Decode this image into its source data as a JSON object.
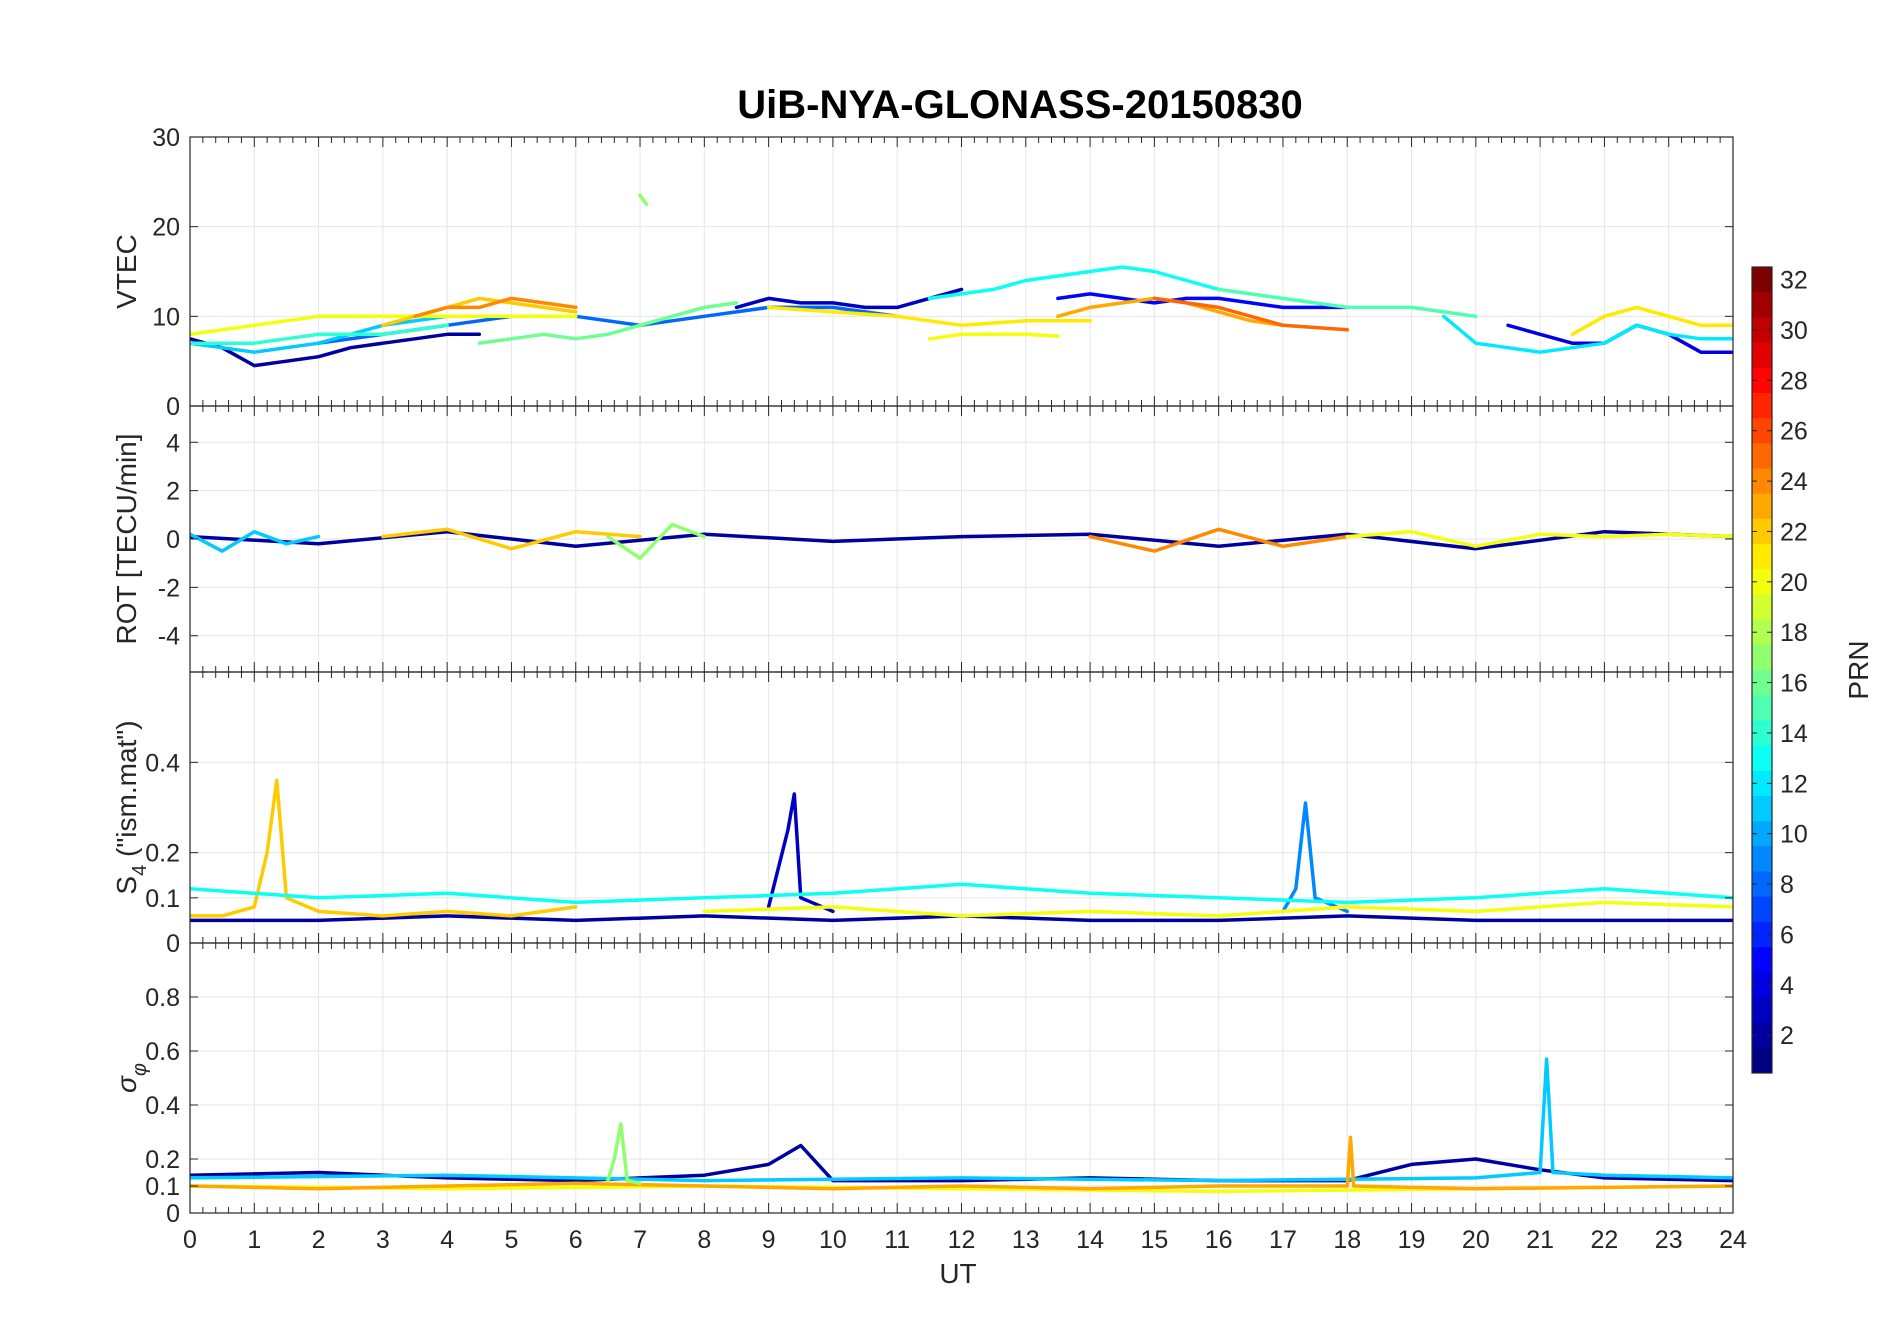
{
  "chart_data": {
    "type": "line",
    "title": "UiB-NYA-GLONASS-20150830",
    "xlabel": "UT",
    "xlim": [
      0,
      24
    ],
    "xticks": [
      0,
      1,
      2,
      3,
      4,
      5,
      6,
      7,
      8,
      9,
      10,
      11,
      12,
      13,
      14,
      15,
      16,
      17,
      18,
      19,
      20,
      21,
      22,
      23,
      24
    ],
    "colorbar": {
      "label": "PRN",
      "range": [
        1,
        32
      ],
      "ticks": [
        2,
        4,
        6,
        8,
        10,
        12,
        14,
        16,
        18,
        20,
        22,
        24,
        26,
        28,
        30,
        32
      ],
      "colormap": "jet",
      "location": "right"
    },
    "grid": true,
    "panels": [
      {
        "id": "vtec",
        "ylabel": "VTEC",
        "ylim": [
          0,
          30
        ],
        "yticks": [
          0,
          10,
          20,
          30
        ],
        "series": [
          {
            "prn": 2,
            "x": [
              0,
              0.5,
              1,
              1.5,
              2,
              2.5,
              3,
              3.5,
              4,
              4.5
            ],
            "y": [
              7.5,
              6.5,
              4.5,
              5,
              5.5,
              6.5,
              7,
              7.5,
              8,
              8
            ]
          },
          {
            "prn": 3,
            "x": [
              8.5,
              9,
              9.5,
              10,
              10.5,
              11,
              11.5,
              12
            ],
            "y": [
              11,
              12,
              11.5,
              11.5,
              11,
              11,
              12,
              13
            ]
          },
          {
            "prn": 5,
            "x": [
              13.5,
              14,
              14.5,
              15,
              15.5,
              16,
              16.5,
              17,
              17.5,
              18
            ],
            "y": [
              12,
              12.5,
              12,
              11.5,
              12,
              12,
              11.5,
              11,
              11,
              11
            ]
          },
          {
            "prn": 4,
            "x": [
              20.5,
              21,
              21.5,
              22,
              22.5,
              23,
              23.5,
              24
            ],
            "y": [
              9,
              8,
              7,
              7,
              9,
              8,
              6,
              6
            ]
          },
          {
            "prn": 8,
            "x": [
              2,
              3,
              4,
              5,
              6,
              7,
              8,
              9,
              10,
              11
            ],
            "y": [
              7,
              8,
              9,
              10,
              10,
              9,
              10,
              11,
              11,
              10
            ]
          },
          {
            "prn": 11,
            "x": [
              0,
              1,
              2,
              3,
              4
            ],
            "y": [
              7,
              6,
              7,
              9,
              10
            ]
          },
          {
            "prn": 12,
            "x": [
              19.5,
              20,
              20.5,
              21,
              21.5,
              22,
              22.5,
              23,
              23.5,
              24
            ],
            "y": [
              10,
              7,
              6.5,
              6,
              6.5,
              7,
              9,
              8,
              7.5,
              7.5
            ]
          },
          {
            "prn": 13,
            "x": [
              11.5,
              12,
              12.5,
              13,
              13.5,
              14,
              14.5,
              15,
              15.5,
              16
            ],
            "y": [
              12,
              12.5,
              13,
              14,
              14.5,
              15,
              15.5,
              15,
              14,
              13
            ]
          },
          {
            "prn": 14,
            "x": [
              0,
              1,
              2,
              3,
              4
            ],
            "y": [
              7,
              7,
              8,
              8,
              9
            ]
          },
          {
            "prn": 15,
            "x": [
              16,
              17,
              18,
              19,
              20
            ],
            "y": [
              13,
              12,
              11,
              11,
              10
            ]
          },
          {
            "prn": 16,
            "x": [
              4.5,
              5,
              5.5,
              6,
              6.5,
              7,
              7.5,
              8,
              8.5
            ],
            "y": [
              7,
              7.5,
              8,
              7.5,
              8,
              9,
              10,
              11,
              11.5
            ]
          },
          {
            "prn": 17,
            "x": [
              7,
              7.1
            ],
            "y": [
              23.5,
              22.5
            ]
          },
          {
            "prn": 20,
            "x": [
              0,
              1,
              2,
              3,
              4,
              5,
              6
            ],
            "y": [
              8,
              9,
              10,
              10,
              10,
              10,
              10
            ]
          },
          {
            "prn": 20,
            "x": [
              11.5,
              12,
              12.5,
              13,
              13.5
            ],
            "y": [
              7.5,
              8,
              8,
              8,
              7.8
            ]
          },
          {
            "prn": 21,
            "x": [
              9,
              10,
              11,
              12,
              13,
              14
            ],
            "y": [
              11,
              10.5,
              10,
              9,
              9.5,
              9.5
            ]
          },
          {
            "prn": 21,
            "x": [
              21.5,
              22,
              22.5,
              23,
              23.5,
              24
            ],
            "y": [
              8,
              10,
              11,
              10,
              9,
              9
            ]
          },
          {
            "prn": 22,
            "x": [
              3,
              3.5,
              4,
              4.5,
              5,
              5.5,
              6
            ],
            "y": [
              9,
              10,
              11,
              12,
              11.5,
              11,
              10.5
            ]
          },
          {
            "prn": 23,
            "x": [
              13.5,
              14,
              14.5,
              15,
              15.5,
              16,
              16.5,
              17
            ],
            "y": [
              10,
              11,
              11.5,
              12,
              11.5,
              10.5,
              9.5,
              9
            ]
          },
          {
            "prn": 24,
            "x": [
              3.5,
              4,
              4.5,
              5,
              5.5,
              6
            ],
            "y": [
              10,
              11,
              11,
              12,
              11.5,
              11
            ]
          },
          {
            "prn": 25,
            "x": [
              15,
              16,
              17,
              18
            ],
            "y": [
              12,
              11,
              9,
              8.5
            ]
          }
        ]
      },
      {
        "id": "rot",
        "ylabel": "ROT [TECU/min]",
        "ylim": [
          -5.5,
          5.5
        ],
        "yticks": [
          -4,
          -2,
          0,
          2,
          4
        ],
        "series": [
          {
            "prn": 2,
            "x": [
              0,
              2,
              4,
              6,
              8,
              10,
              12,
              14,
              16,
              18,
              20,
              22,
              24
            ],
            "y": [
              0.1,
              -0.2,
              0.3,
              -0.3,
              0.2,
              -0.1,
              0.1,
              0.2,
              -0.3,
              0.2,
              -0.4,
              0.3,
              0.1
            ]
          },
          {
            "prn": 11,
            "x": [
              0,
              0.5,
              1,
              1.5,
              2
            ],
            "y": [
              0.2,
              -0.5,
              0.3,
              -0.2,
              0.1
            ]
          },
          {
            "prn": 17,
            "x": [
              6.5,
              7,
              7.5,
              8
            ],
            "y": [
              0.1,
              -0.8,
              0.6,
              0.1
            ]
          },
          {
            "prn": 22,
            "x": [
              3,
              4,
              5,
              6,
              7
            ],
            "y": [
              0.1,
              0.4,
              -0.4,
              0.3,
              0.1
            ]
          },
          {
            "prn": 24,
            "x": [
              14,
              15,
              16,
              17,
              18
            ],
            "y": [
              0.1,
              -0.5,
              0.4,
              -0.3,
              0.1
            ]
          },
          {
            "prn": 20,
            "x": [
              18,
              19,
              20,
              21,
              22,
              23,
              24
            ],
            "y": [
              0.1,
              0.3,
              -0.3,
              0.2,
              0.1,
              0.2,
              0.1
            ]
          }
        ]
      },
      {
        "id": "s4",
        "ylabel": "S_4 (\"ism.mat\")",
        "ylabel_main": "S",
        "ylabel_sub": "4",
        "ylabel_rest": " (\"ism.mat\")",
        "ylim": [
          0,
          0.6
        ],
        "yticks": [
          0,
          0.1,
          0.2,
          0.4
        ],
        "series": [
          {
            "prn": 2,
            "x": [
              0,
              2,
              4,
              6,
              8,
              10,
              12,
              14,
              16,
              18,
              20,
              22,
              24
            ],
            "y": [
              0.05,
              0.05,
              0.06,
              0.05,
              0.06,
              0.05,
              0.06,
              0.05,
              0.05,
              0.06,
              0.05,
              0.05,
              0.05
            ]
          },
          {
            "prn": 22,
            "x": [
              0,
              0.5,
              1,
              1.2,
              1.35,
              1.5,
              2,
              3,
              4,
              5,
              6
            ],
            "y": [
              0.06,
              0.06,
              0.08,
              0.2,
              0.36,
              0.1,
              0.07,
              0.06,
              0.07,
              0.06,
              0.08
            ]
          },
          {
            "prn": 3,
            "x": [
              9,
              9.3,
              9.4,
              9.5,
              10
            ],
            "y": [
              0.08,
              0.25,
              0.33,
              0.1,
              0.07
            ]
          },
          {
            "prn": 9,
            "x": [
              17,
              17.2,
              17.35,
              17.5,
              18
            ],
            "y": [
              0.07,
              0.12,
              0.31,
              0.1,
              0.07
            ]
          },
          {
            "prn": 13,
            "x": [
              0,
              2,
              4,
              6,
              8,
              10,
              12,
              14,
              16,
              18,
              20,
              22,
              24
            ],
            "y": [
              0.12,
              0.1,
              0.11,
              0.09,
              0.1,
              0.11,
              0.13,
              0.11,
              0.1,
              0.09,
              0.1,
              0.12,
              0.1
            ]
          },
          {
            "prn": 20,
            "x": [
              8,
              10,
              12,
              14,
              16,
              18,
              20,
              22,
              24
            ],
            "y": [
              0.07,
              0.08,
              0.06,
              0.07,
              0.06,
              0.08,
              0.07,
              0.09,
              0.08
            ]
          }
        ]
      },
      {
        "id": "sigma_phi",
        "ylabel": "σ_φ",
        "ylabel_main": "σ",
        "ylabel_sub": "φ",
        "ylim": [
          0,
          1
        ],
        "yticks": [
          0,
          0.1,
          0.2,
          0.4,
          0.6,
          0.8
        ],
        "series": [
          {
            "prn": 2,
            "x": [
              0,
              2,
              4,
              6,
              8,
              9,
              9.5,
              10,
              12,
              14,
              16,
              18,
              19,
              20,
              21,
              22,
              24
            ],
            "y": [
              0.14,
              0.15,
              0.13,
              0.12,
              0.14,
              0.18,
              0.25,
              0.12,
              0.12,
              0.13,
              0.12,
              0.12,
              0.18,
              0.2,
              0.16,
              0.13,
              0.12
            ]
          },
          {
            "prn": 11,
            "x": [
              0,
              4,
              8,
              12,
              16,
              20,
              21,
              21.1,
              21.2,
              22,
              24
            ],
            "y": [
              0.13,
              0.14,
              0.12,
              0.13,
              0.12,
              0.13,
              0.15,
              0.57,
              0.15,
              0.14,
              0.13
            ]
          },
          {
            "prn": 20,
            "x": [
              0,
              4,
              8,
              12,
              16,
              20,
              24
            ],
            "y": [
              0.1,
              0.09,
              0.1,
              0.09,
              0.08,
              0.09,
              0.1
            ]
          },
          {
            "prn": 23,
            "x": [
              0,
              2,
              4,
              6,
              8,
              10,
              12,
              14,
              16,
              18,
              18.05,
              18.1,
              20,
              24
            ],
            "y": [
              0.1,
              0.09,
              0.1,
              0.11,
              0.1,
              0.09,
              0.1,
              0.09,
              0.1,
              0.1,
              0.28,
              0.1,
              0.09,
              0.1
            ]
          },
          {
            "prn": 17,
            "x": [
              6.5,
              6.6,
              6.7,
              6.8,
              7
            ],
            "y": [
              0.12,
              0.2,
              0.33,
              0.12,
              0.11
            ]
          }
        ]
      }
    ]
  }
}
